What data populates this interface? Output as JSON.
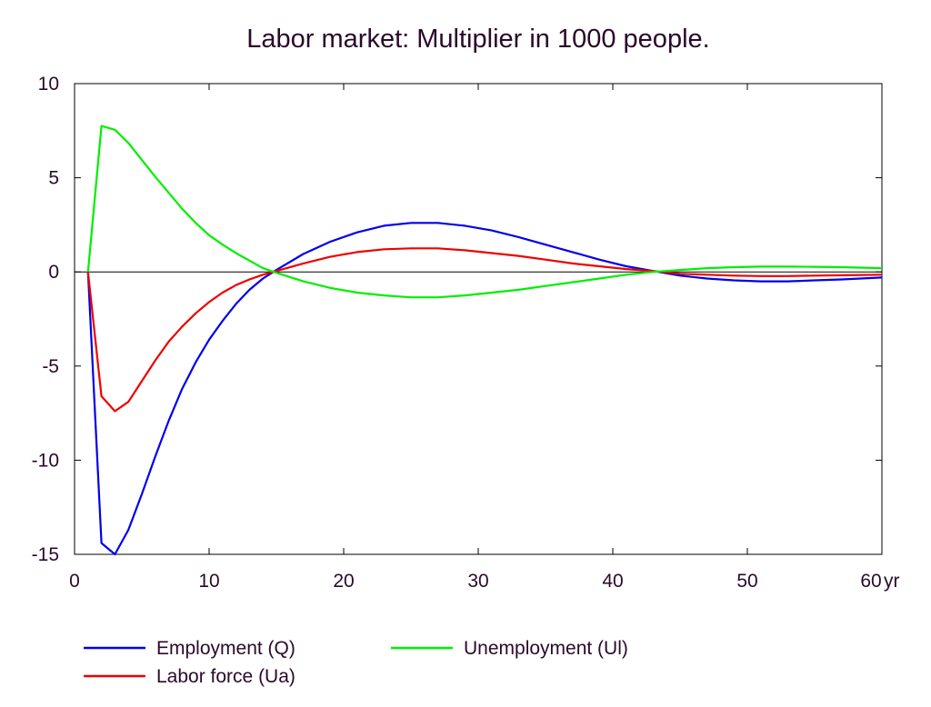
{
  "chart_data": {
    "type": "line",
    "title": "Labor market: Multiplier in 1000 people.",
    "xlabel": "",
    "ylabel": "",
    "x_unit_label": "yr",
    "xlim": [
      0,
      60
    ],
    "ylim": [
      -15,
      10
    ],
    "x_ticks": [
      0,
      10,
      20,
      30,
      40,
      50,
      60
    ],
    "y_ticks": [
      10,
      5,
      0,
      -5,
      -10,
      -15
    ],
    "grid": false,
    "zero_line": true,
    "legend_position": "bottom",
    "series": [
      {
        "name": "Employment (Q)",
        "color": "#0000ee",
        "x": [
          1,
          2,
          3,
          4,
          5,
          6,
          7,
          8,
          9,
          10,
          11,
          12,
          13,
          14,
          15,
          17,
          19,
          21,
          23,
          25,
          27,
          29,
          31,
          33,
          35,
          37,
          39,
          41,
          43,
          45,
          47,
          49,
          51,
          53,
          55,
          57,
          60
        ],
        "y": [
          0,
          -14.4,
          -15.0,
          -13.7,
          -11.8,
          -9.8,
          -7.9,
          -6.2,
          -4.8,
          -3.6,
          -2.6,
          -1.7,
          -0.95,
          -0.35,
          0.1,
          0.95,
          1.6,
          2.1,
          2.45,
          2.6,
          2.6,
          2.45,
          2.2,
          1.85,
          1.45,
          1.05,
          0.65,
          0.3,
          0.05,
          -0.2,
          -0.35,
          -0.45,
          -0.5,
          -0.5,
          -0.45,
          -0.4,
          -0.3
        ]
      },
      {
        "name": "Labor force (Ua)",
        "color": "#ee0000",
        "x": [
          1,
          2,
          3,
          4,
          5,
          6,
          7,
          8,
          9,
          10,
          11,
          12,
          13,
          14,
          15,
          17,
          19,
          21,
          23,
          25,
          27,
          29,
          31,
          33,
          35,
          37,
          39,
          41,
          43,
          45,
          47,
          49,
          51,
          53,
          55,
          57,
          60
        ],
        "y": [
          0,
          -6.6,
          -7.4,
          -6.9,
          -5.8,
          -4.7,
          -3.7,
          -2.9,
          -2.2,
          -1.6,
          -1.1,
          -0.7,
          -0.4,
          -0.15,
          0.05,
          0.45,
          0.8,
          1.05,
          1.2,
          1.25,
          1.25,
          1.15,
          1.0,
          0.85,
          0.65,
          0.45,
          0.3,
          0.15,
          0.05,
          -0.1,
          -0.15,
          -0.2,
          -0.22,
          -0.22,
          -0.2,
          -0.18,
          -0.15
        ]
      },
      {
        "name": "Unemployment (Ul)",
        "color": "#00ee00",
        "x": [
          1,
          2,
          3,
          4,
          5,
          6,
          7,
          8,
          9,
          10,
          11,
          12,
          13,
          14,
          15,
          17,
          19,
          21,
          23,
          25,
          27,
          29,
          31,
          33,
          35,
          37,
          39,
          41,
          43,
          45,
          47,
          49,
          51,
          53,
          55,
          57,
          60
        ],
        "y": [
          0,
          7.75,
          7.55,
          6.85,
          5.95,
          5.05,
          4.2,
          3.35,
          2.6,
          1.95,
          1.45,
          1.0,
          0.6,
          0.2,
          -0.05,
          -0.5,
          -0.85,
          -1.1,
          -1.25,
          -1.35,
          -1.35,
          -1.25,
          -1.1,
          -0.95,
          -0.75,
          -0.55,
          -0.35,
          -0.15,
          0.0,
          0.1,
          0.2,
          0.25,
          0.28,
          0.28,
          0.27,
          0.25,
          0.2
        ]
      }
    ]
  }
}
